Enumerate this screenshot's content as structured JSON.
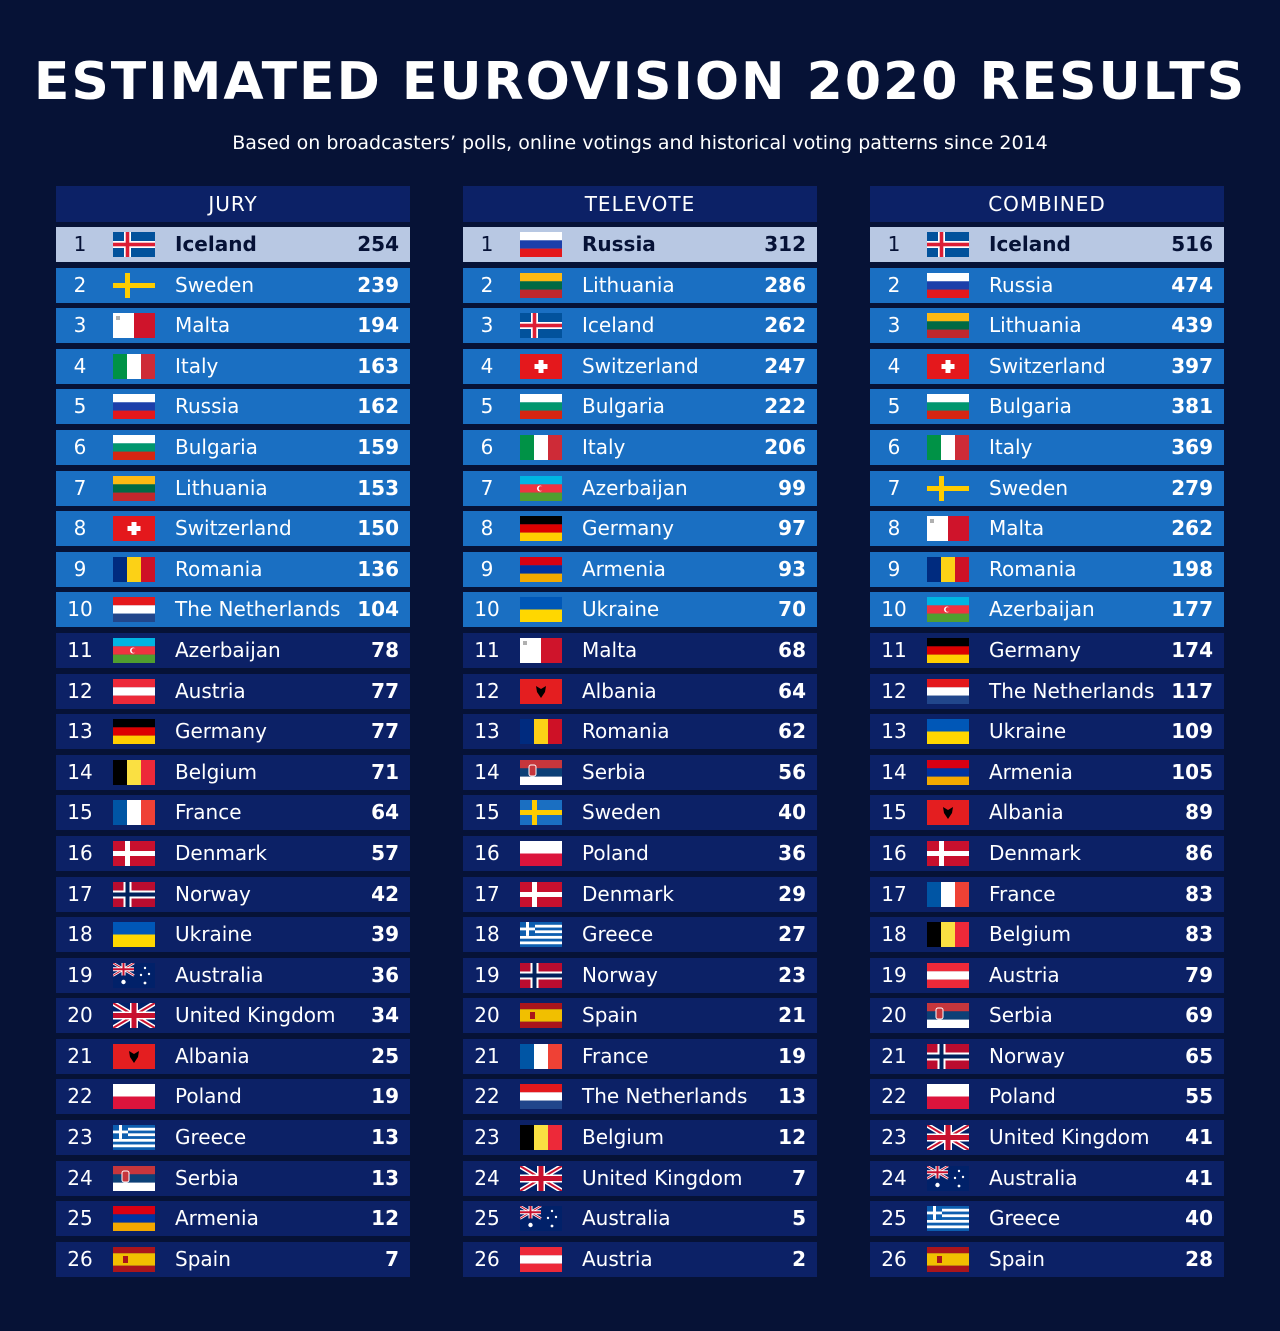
{
  "title": "ESTIMATED EUROVISION 2020 RESULTS",
  "subtitle": "Based on broadcasters’ polls, online votings and historical voting patterns since 2014",
  "tables": [
    {
      "key": "jury",
      "header": "JURY",
      "rows": [
        {
          "rank": "1",
          "country": "Iceland",
          "points": "254",
          "flag": "iceland-flag"
        },
        {
          "rank": "2",
          "country": "Sweden",
          "points": "239",
          "flag": "sweden-flag"
        },
        {
          "rank": "3",
          "country": "Malta",
          "points": "194",
          "flag": "malta-flag"
        },
        {
          "rank": "4",
          "country": "Italy",
          "points": "163",
          "flag": "italy-flag"
        },
        {
          "rank": "5",
          "country": "Russia",
          "points": "162",
          "flag": "russia-flag"
        },
        {
          "rank": "6",
          "country": "Bulgaria",
          "points": "159",
          "flag": "bulgaria-flag"
        },
        {
          "rank": "7",
          "country": "Lithuania",
          "points": "153",
          "flag": "lithuania-flag"
        },
        {
          "rank": "8",
          "country": "Switzerland",
          "points": "150",
          "flag": "switzerland-flag"
        },
        {
          "rank": "9",
          "country": "Romania",
          "points": "136",
          "flag": "romania-flag"
        },
        {
          "rank": "10",
          "country": "The Netherlands",
          "points": "104",
          "flag": "netherlands-flag"
        },
        {
          "rank": "11",
          "country": "Azerbaijan",
          "points": "78",
          "flag": "azerbaijan-flag"
        },
        {
          "rank": "12",
          "country": "Austria",
          "points": "77",
          "flag": "austria-flag"
        },
        {
          "rank": "13",
          "country": "Germany",
          "points": "77",
          "flag": "germany-flag"
        },
        {
          "rank": "14",
          "country": "Belgium",
          "points": "71",
          "flag": "belgium-flag"
        },
        {
          "rank": "15",
          "country": "France",
          "points": "64",
          "flag": "france-flag"
        },
        {
          "rank": "16",
          "country": "Denmark",
          "points": "57",
          "flag": "denmark-flag"
        },
        {
          "rank": "17",
          "country": "Norway",
          "points": "42",
          "flag": "norway-flag"
        },
        {
          "rank": "18",
          "country": "Ukraine",
          "points": "39",
          "flag": "ukraine-flag"
        },
        {
          "rank": "19",
          "country": "Australia",
          "points": "36",
          "flag": "australia-flag"
        },
        {
          "rank": "20",
          "country": "United Kingdom",
          "points": "34",
          "flag": "united-kingdom-flag"
        },
        {
          "rank": "21",
          "country": "Albania",
          "points": "25",
          "flag": "albania-flag"
        },
        {
          "rank": "22",
          "country": "Poland",
          "points": "19",
          "flag": "poland-flag"
        },
        {
          "rank": "23",
          "country": "Greece",
          "points": "13",
          "flag": "greece-flag"
        },
        {
          "rank": "24",
          "country": "Serbia",
          "points": "13",
          "flag": "serbia-flag"
        },
        {
          "rank": "25",
          "country": "Armenia",
          "points": "12",
          "flag": "armenia-flag"
        },
        {
          "rank": "26",
          "country": "Spain",
          "points": "7",
          "flag": "spain-flag"
        }
      ]
    },
    {
      "key": "televote",
      "header": "TELEVOTE",
      "rows": [
        {
          "rank": "1",
          "country": "Russia",
          "points": "312",
          "flag": "russia-flag"
        },
        {
          "rank": "2",
          "country": "Lithuania",
          "points": "286",
          "flag": "lithuania-flag"
        },
        {
          "rank": "3",
          "country": "Iceland",
          "points": "262",
          "flag": "iceland-flag"
        },
        {
          "rank": "4",
          "country": "Switzerland",
          "points": "247",
          "flag": "switzerland-flag"
        },
        {
          "rank": "5",
          "country": "Bulgaria",
          "points": "222",
          "flag": "bulgaria-flag"
        },
        {
          "rank": "6",
          "country": "Italy",
          "points": "206",
          "flag": "italy-flag"
        },
        {
          "rank": "7",
          "country": "Azerbaijan",
          "points": "99",
          "flag": "azerbaijan-flag"
        },
        {
          "rank": "8",
          "country": "Germany",
          "points": "97",
          "flag": "germany-flag"
        },
        {
          "rank": "9",
          "country": "Armenia",
          "points": "93",
          "flag": "armenia-flag"
        },
        {
          "rank": "10",
          "country": "Ukraine",
          "points": "70",
          "flag": "ukraine-flag"
        },
        {
          "rank": "11",
          "country": "Malta",
          "points": "68",
          "flag": "malta-flag"
        },
        {
          "rank": "12",
          "country": "Albania",
          "points": "64",
          "flag": "albania-flag"
        },
        {
          "rank": "13",
          "country": "Romania",
          "points": "62",
          "flag": "romania-flag"
        },
        {
          "rank": "14",
          "country": "Serbia",
          "points": "56",
          "flag": "serbia-flag"
        },
        {
          "rank": "15",
          "country": "Sweden",
          "points": "40",
          "flag": "sweden-flag"
        },
        {
          "rank": "16",
          "country": "Poland",
          "points": "36",
          "flag": "poland-flag"
        },
        {
          "rank": "17",
          "country": "Denmark",
          "points": "29",
          "flag": "denmark-flag"
        },
        {
          "rank": "18",
          "country": "Greece",
          "points": "27",
          "flag": "greece-flag"
        },
        {
          "rank": "19",
          "country": "Norway",
          "points": "23",
          "flag": "norway-flag"
        },
        {
          "rank": "20",
          "country": "Spain",
          "points": "21",
          "flag": "spain-flag"
        },
        {
          "rank": "21",
          "country": "France",
          "points": "19",
          "flag": "france-flag"
        },
        {
          "rank": "22",
          "country": "The Netherlands",
          "points": "13",
          "flag": "netherlands-flag"
        },
        {
          "rank": "23",
          "country": "Belgium",
          "points": "12",
          "flag": "belgium-flag"
        },
        {
          "rank": "24",
          "country": "United Kingdom",
          "points": "7",
          "flag": "united-kingdom-flag"
        },
        {
          "rank": "25",
          "country": "Australia",
          "points": "5",
          "flag": "australia-flag"
        },
        {
          "rank": "26",
          "country": "Austria",
          "points": "2",
          "flag": "austria-flag"
        }
      ]
    },
    {
      "key": "combined",
      "header": "COMBINED",
      "rows": [
        {
          "rank": "1",
          "country": "Iceland",
          "points": "516",
          "flag": "iceland-flag"
        },
        {
          "rank": "2",
          "country": "Russia",
          "points": "474",
          "flag": "russia-flag"
        },
        {
          "rank": "3",
          "country": "Lithuania",
          "points": "439",
          "flag": "lithuania-flag"
        },
        {
          "rank": "4",
          "country": "Switzerland",
          "points": "397",
          "flag": "switzerland-flag"
        },
        {
          "rank": "5",
          "country": "Bulgaria",
          "points": "381",
          "flag": "bulgaria-flag"
        },
        {
          "rank": "6",
          "country": "Italy",
          "points": "369",
          "flag": "italy-flag"
        },
        {
          "rank": "7",
          "country": "Sweden",
          "points": "279",
          "flag": "sweden-flag"
        },
        {
          "rank": "8",
          "country": "Malta",
          "points": "262",
          "flag": "malta-flag"
        },
        {
          "rank": "9",
          "country": "Romania",
          "points": "198",
          "flag": "romania-flag"
        },
        {
          "rank": "10",
          "country": "Azerbaijan",
          "points": "177",
          "flag": "azerbaijan-flag"
        },
        {
          "rank": "11",
          "country": "Germany",
          "points": "174",
          "flag": "germany-flag"
        },
        {
          "rank": "12",
          "country": "The Netherlands",
          "points": "117",
          "flag": "netherlands-flag"
        },
        {
          "rank": "13",
          "country": "Ukraine",
          "points": "109",
          "flag": "ukraine-flag"
        },
        {
          "rank": "14",
          "country": "Armenia",
          "points": "105",
          "flag": "armenia-flag"
        },
        {
          "rank": "15",
          "country": "Albania",
          "points": "89",
          "flag": "albania-flag"
        },
        {
          "rank": "16",
          "country": "Denmark",
          "points": "86",
          "flag": "denmark-flag"
        },
        {
          "rank": "17",
          "country": "France",
          "points": "83",
          "flag": "france-flag"
        },
        {
          "rank": "18",
          "country": "Belgium",
          "points": "83",
          "flag": "belgium-flag"
        },
        {
          "rank": "19",
          "country": "Austria",
          "points": "79",
          "flag": "austria-flag"
        },
        {
          "rank": "20",
          "country": "Serbia",
          "points": "69",
          "flag": "serbia-flag"
        },
        {
          "rank": "21",
          "country": "Norway",
          "points": "65",
          "flag": "norway-flag"
        },
        {
          "rank": "22",
          "country": "Poland",
          "points": "55",
          "flag": "poland-flag"
        },
        {
          "rank": "23",
          "country": "United Kingdom",
          "points": "41",
          "flag": "united-kingdom-flag"
        },
        {
          "rank": "24",
          "country": "Australia",
          "points": "41",
          "flag": "australia-flag"
        },
        {
          "rank": "25",
          "country": "Greece",
          "points": "40",
          "flag": "greece-flag"
        },
        {
          "rank": "26",
          "country": "Spain",
          "points": "28",
          "flag": "spain-flag"
        }
      ]
    }
  ],
  "colors": {
    "background": "#061236",
    "row_dark": "#0c2166",
    "row_highlight": "#1a6fc2",
    "row_first": "#b8c8e3"
  }
}
